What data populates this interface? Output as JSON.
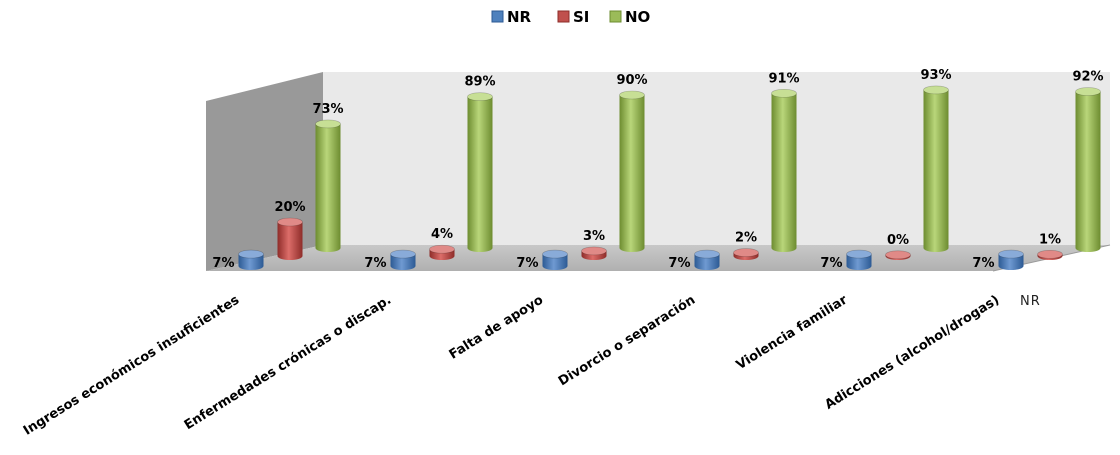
{
  "colors": {
    "NR": "#4f81bd",
    "SI": "#c0504d",
    "NO": "#9bbb59"
  },
  "chart_data": {
    "type": "bar",
    "title": "",
    "legend_position": "top",
    "categories": [
      "Ingresos económicos insuficientes",
      "Enfermedades crónicas o discap.",
      "Falta de apoyo",
      "Divorcio o separación",
      "Violencia familiar",
      "Adicciones (alcohol/drogas)"
    ],
    "series": [
      {
        "name": "NR",
        "values": [
          7,
          7,
          7,
          7,
          7,
          7
        ],
        "labels": [
          "7%",
          "7%",
          "7%",
          "7%",
          "7%",
          "7%"
        ]
      },
      {
        "name": "SI",
        "values": [
          20,
          4,
          3,
          2,
          0,
          1
        ],
        "labels": [
          "20%",
          "4%",
          "3%",
          "2%",
          "0%",
          "1%"
        ]
      },
      {
        "name": "NO",
        "values": [
          73,
          89,
          90,
          91,
          93,
          92
        ],
        "labels": [
          "73%",
          "89%",
          "90%",
          "91%",
          "93%",
          "92%"
        ]
      }
    ],
    "depth_axis_label": "NR",
    "ylim": [
      0,
      100
    ],
    "grid": false
  }
}
